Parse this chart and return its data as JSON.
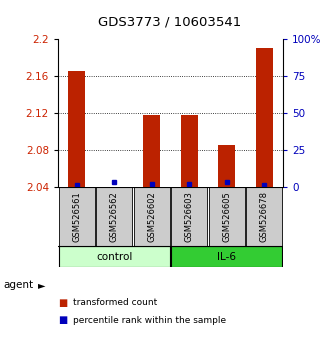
{
  "title": "GDS3773 / 10603541",
  "samples": [
    "GSM526561",
    "GSM526562",
    "GSM526602",
    "GSM526603",
    "GSM526605",
    "GSM526678"
  ],
  "red_values": [
    2.165,
    2.04,
    2.118,
    2.118,
    2.085,
    2.19
  ],
  "blue_values": [
    1.5,
    3.5,
    2.0,
    2.0,
    3.5,
    1.5
  ],
  "y_min": 2.04,
  "y_max": 2.2,
  "y_ticks": [
    2.04,
    2.08,
    2.12,
    2.16,
    2.2
  ],
  "y2_ticks": [
    0,
    25,
    50,
    75,
    100
  ],
  "y2_labels": [
    "0",
    "25",
    "50",
    "75",
    "100%"
  ],
  "left_color": "#cc2200",
  "right_color": "#0000bb",
  "bar_color_red": "#bb2200",
  "bar_color_blue": "#0000bb",
  "control_color": "#ccffcc",
  "il6_color": "#33cc33",
  "sample_bg": "#cccccc",
  "legend_red": "transformed count",
  "legend_blue": "percentile rank within the sample",
  "agent_label": "agent"
}
